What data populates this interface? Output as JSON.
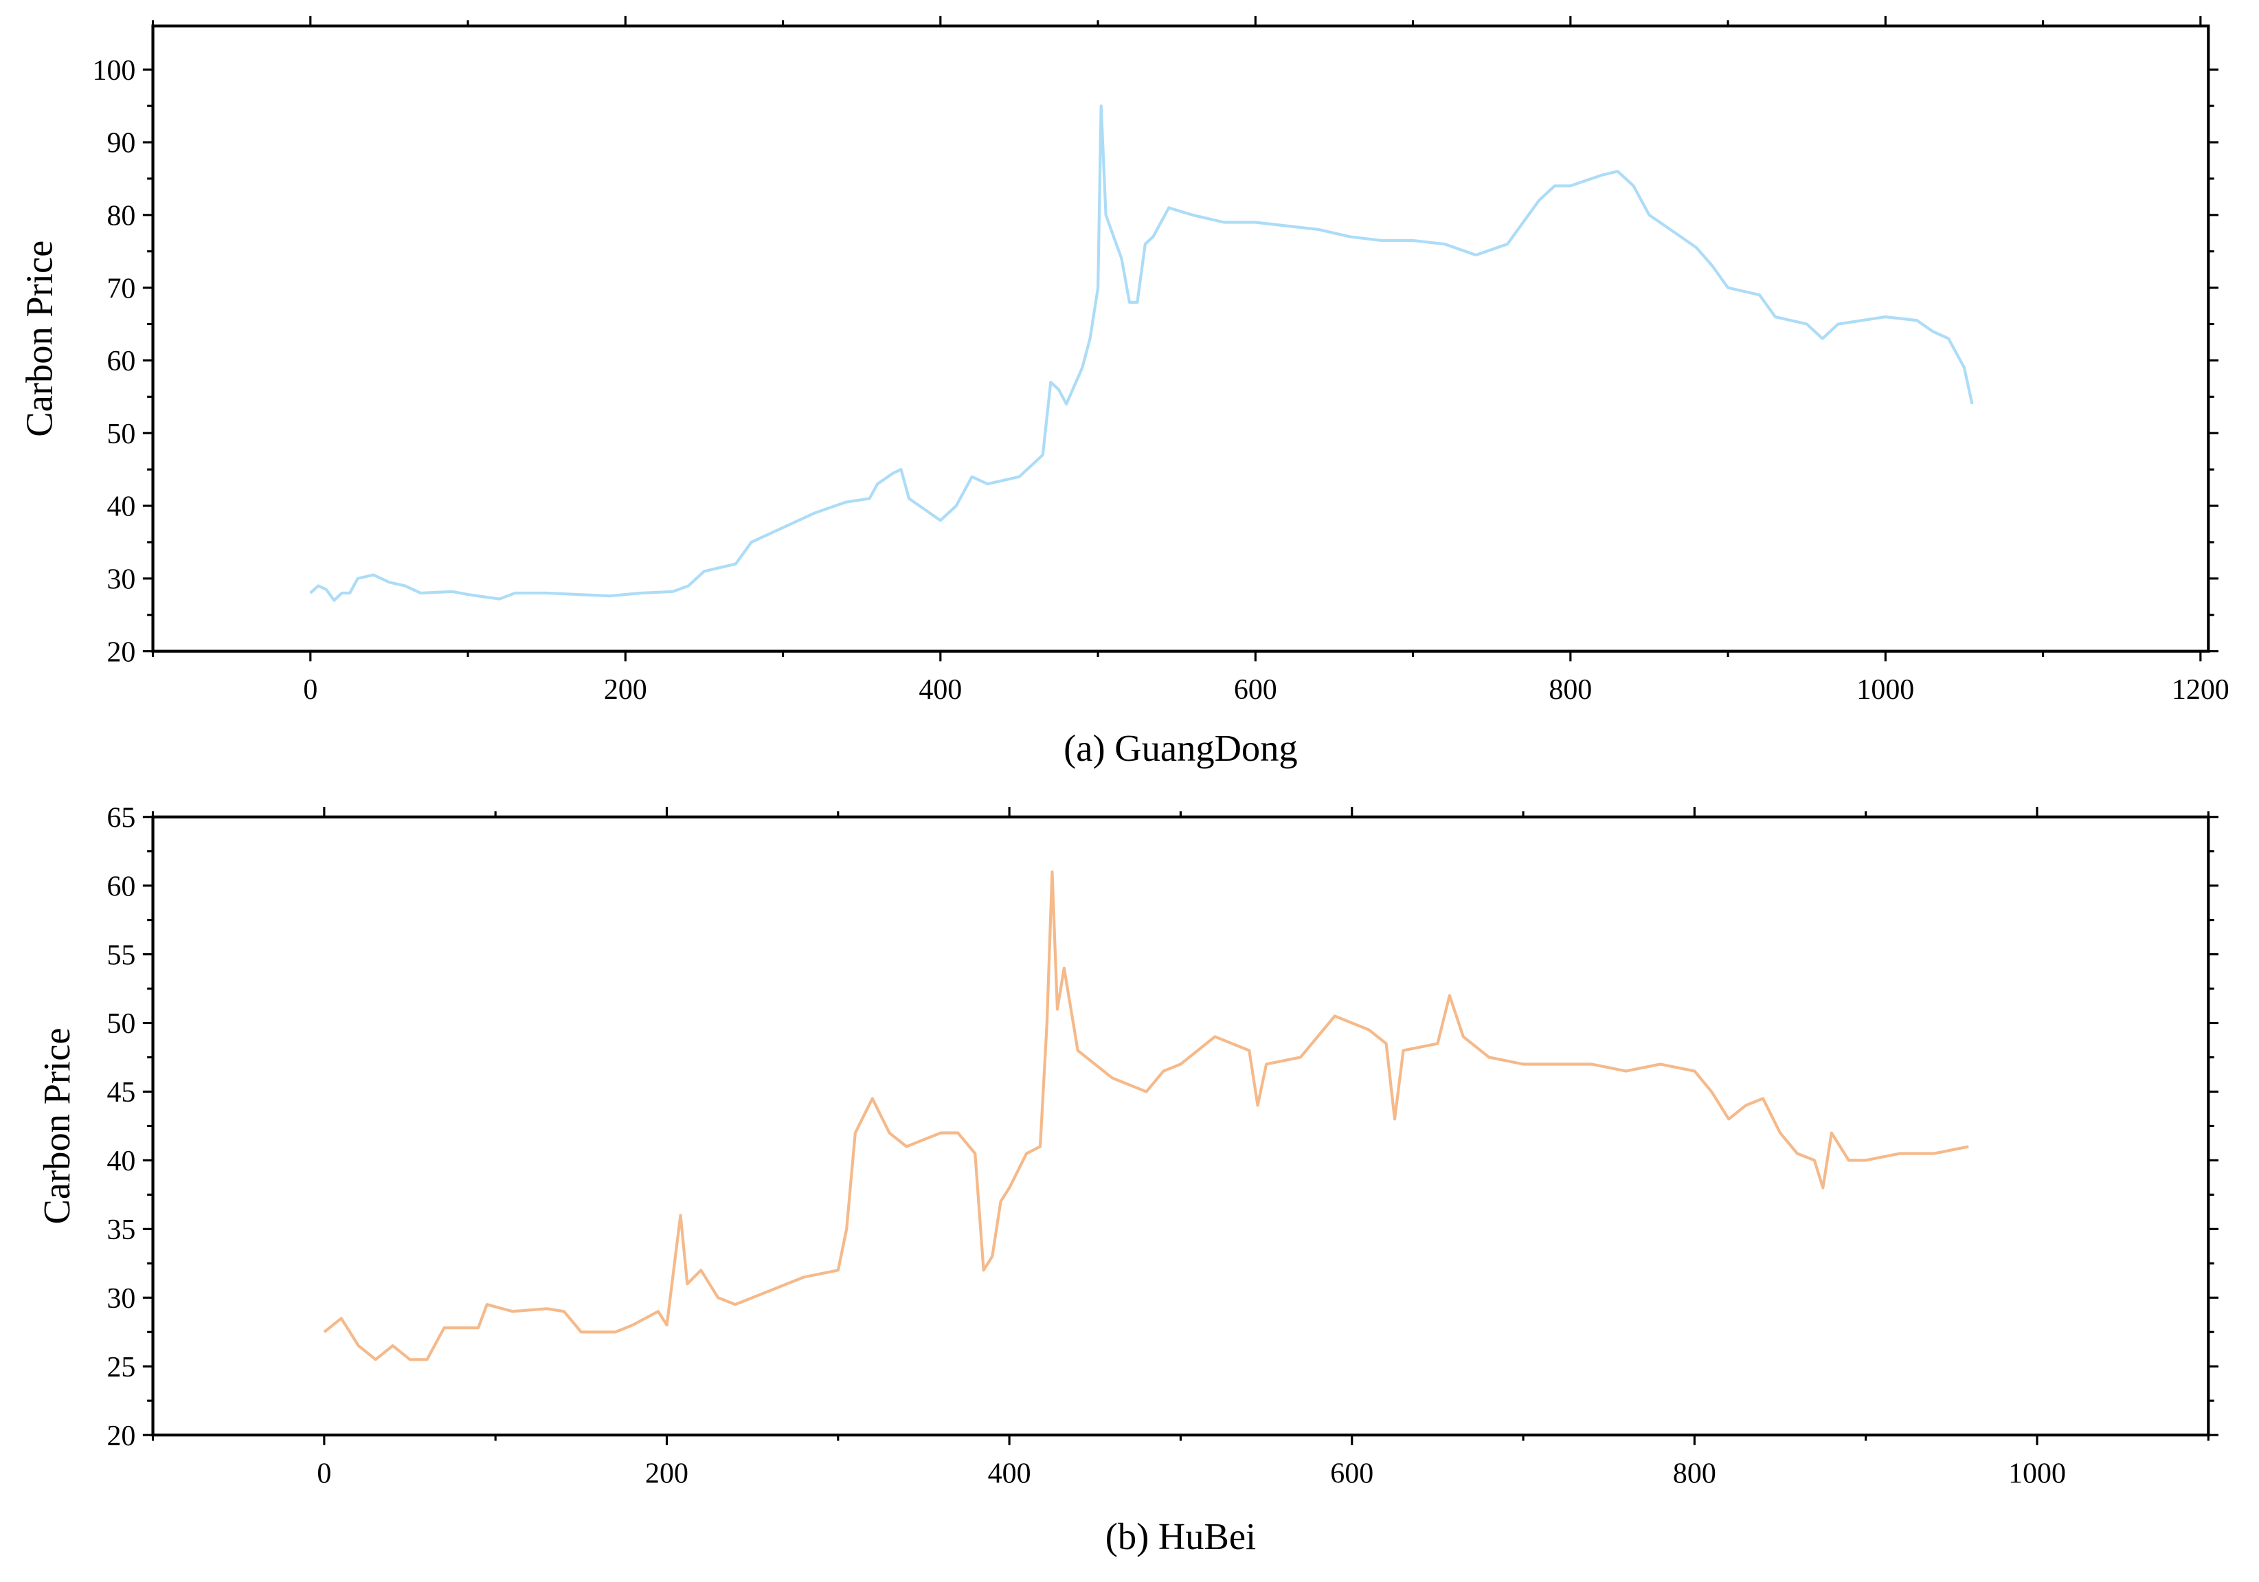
{
  "chart_data": [
    {
      "type": "line",
      "ylabel": "Carbon Price",
      "caption": "(a) GuangDong",
      "color": "#acdcf7",
      "x": [
        0,
        5,
        10,
        15,
        20,
        25,
        30,
        40,
        50,
        60,
        70,
        90,
        100,
        110,
        120,
        130,
        150,
        170,
        190,
        210,
        230,
        240,
        250,
        270,
        280,
        300,
        320,
        340,
        355,
        360,
        370,
        375,
        380,
        390,
        400,
        410,
        420,
        430,
        450,
        460,
        465,
        470,
        475,
        480,
        490,
        495,
        500,
        502,
        505,
        510,
        515,
        520,
        525,
        530,
        535,
        545,
        560,
        580,
        600,
        620,
        640,
        660,
        680,
        700,
        720,
        740,
        760,
        780,
        790,
        800,
        820,
        830,
        840,
        850,
        870,
        880,
        890,
        900,
        920,
        930,
        950,
        960,
        970,
        1000,
        1020,
        1030,
        1040,
        1050,
        1055
      ],
      "values": [
        28,
        29,
        28.5,
        27,
        28,
        28,
        30,
        30.5,
        29.5,
        29,
        28,
        28.2,
        27.8,
        27.5,
        27.2,
        28,
        28,
        27.8,
        27.6,
        28,
        28.2,
        29,
        31,
        32,
        35,
        37,
        39,
        40.5,
        41,
        43,
        44.5,
        45,
        41,
        39.5,
        38,
        40,
        44,
        43,
        44,
        46,
        47,
        57,
        56,
        54,
        59,
        63,
        70,
        95,
        80,
        77,
        74,
        68,
        68,
        76,
        77,
        81,
        80,
        79,
        79,
        78.5,
        78,
        77,
        76.5,
        76.5,
        76,
        74.5,
        76,
        82,
        84,
        84,
        85.5,
        86,
        84,
        80,
        77,
        75.5,
        73,
        70,
        69,
        66,
        65,
        63,
        65,
        66,
        65.5,
        64,
        63,
        59,
        54
      ],
      "xlim": [
        -100,
        1205
      ],
      "ylim": [
        20,
        106
      ],
      "xticks": [
        0,
        200,
        400,
        600,
        800,
        1000,
        1200
      ],
      "yticks": [
        20,
        30,
        40,
        50,
        60,
        70,
        80,
        90,
        100
      ]
    },
    {
      "type": "line",
      "ylabel": "Carbon Price",
      "caption": "(b) HuBei",
      "color": "#f5b98a",
      "x": [
        0,
        10,
        20,
        30,
        40,
        50,
        60,
        70,
        90,
        95,
        110,
        130,
        140,
        150,
        170,
        180,
        195,
        200,
        205,
        208,
        212,
        220,
        230,
        240,
        260,
        280,
        300,
        305,
        310,
        320,
        330,
        340,
        350,
        360,
        370,
        380,
        385,
        390,
        395,
        400,
        410,
        418,
        422,
        425,
        428,
        432,
        440,
        450,
        460,
        480,
        490,
        500,
        520,
        540,
        545,
        550,
        570,
        590,
        610,
        620,
        625,
        630,
        650,
        657,
        665,
        680,
        700,
        720,
        740,
        760,
        780,
        800,
        810,
        820,
        830,
        840,
        850,
        860,
        870,
        875,
        880,
        890,
        900,
        920,
        940,
        960
      ],
      "values": [
        27.5,
        28.5,
        26.5,
        25.5,
        26.5,
        25.5,
        25.5,
        27.8,
        27.8,
        29.5,
        29,
        29.2,
        29,
        27.5,
        27.5,
        28,
        29,
        28,
        33,
        36,
        31,
        32,
        30,
        29.5,
        30.5,
        31.5,
        32,
        35,
        42,
        44.5,
        42,
        41,
        41.5,
        42,
        42,
        40.5,
        32,
        33,
        37,
        38,
        40.5,
        41,
        50,
        61,
        51,
        54,
        48,
        47,
        46,
        45,
        46.5,
        47,
        49,
        48,
        44,
        47,
        47.5,
        50.5,
        49.5,
        48.5,
        43,
        48,
        48.5,
        52,
        49,
        47.5,
        47,
        47,
        47,
        46.5,
        47,
        46.5,
        45,
        43,
        44,
        44.5,
        42,
        40.5,
        40,
        38,
        42,
        40,
        40,
        40.5,
        40.5,
        41
      ],
      "xlim": [
        -100,
        1100
      ],
      "ylim": [
        20,
        65
      ],
      "xticks": [
        0,
        200,
        400,
        600,
        800,
        1000
      ],
      "yticks": [
        20,
        25,
        30,
        35,
        40,
        45,
        50,
        55,
        60,
        65
      ]
    }
  ]
}
